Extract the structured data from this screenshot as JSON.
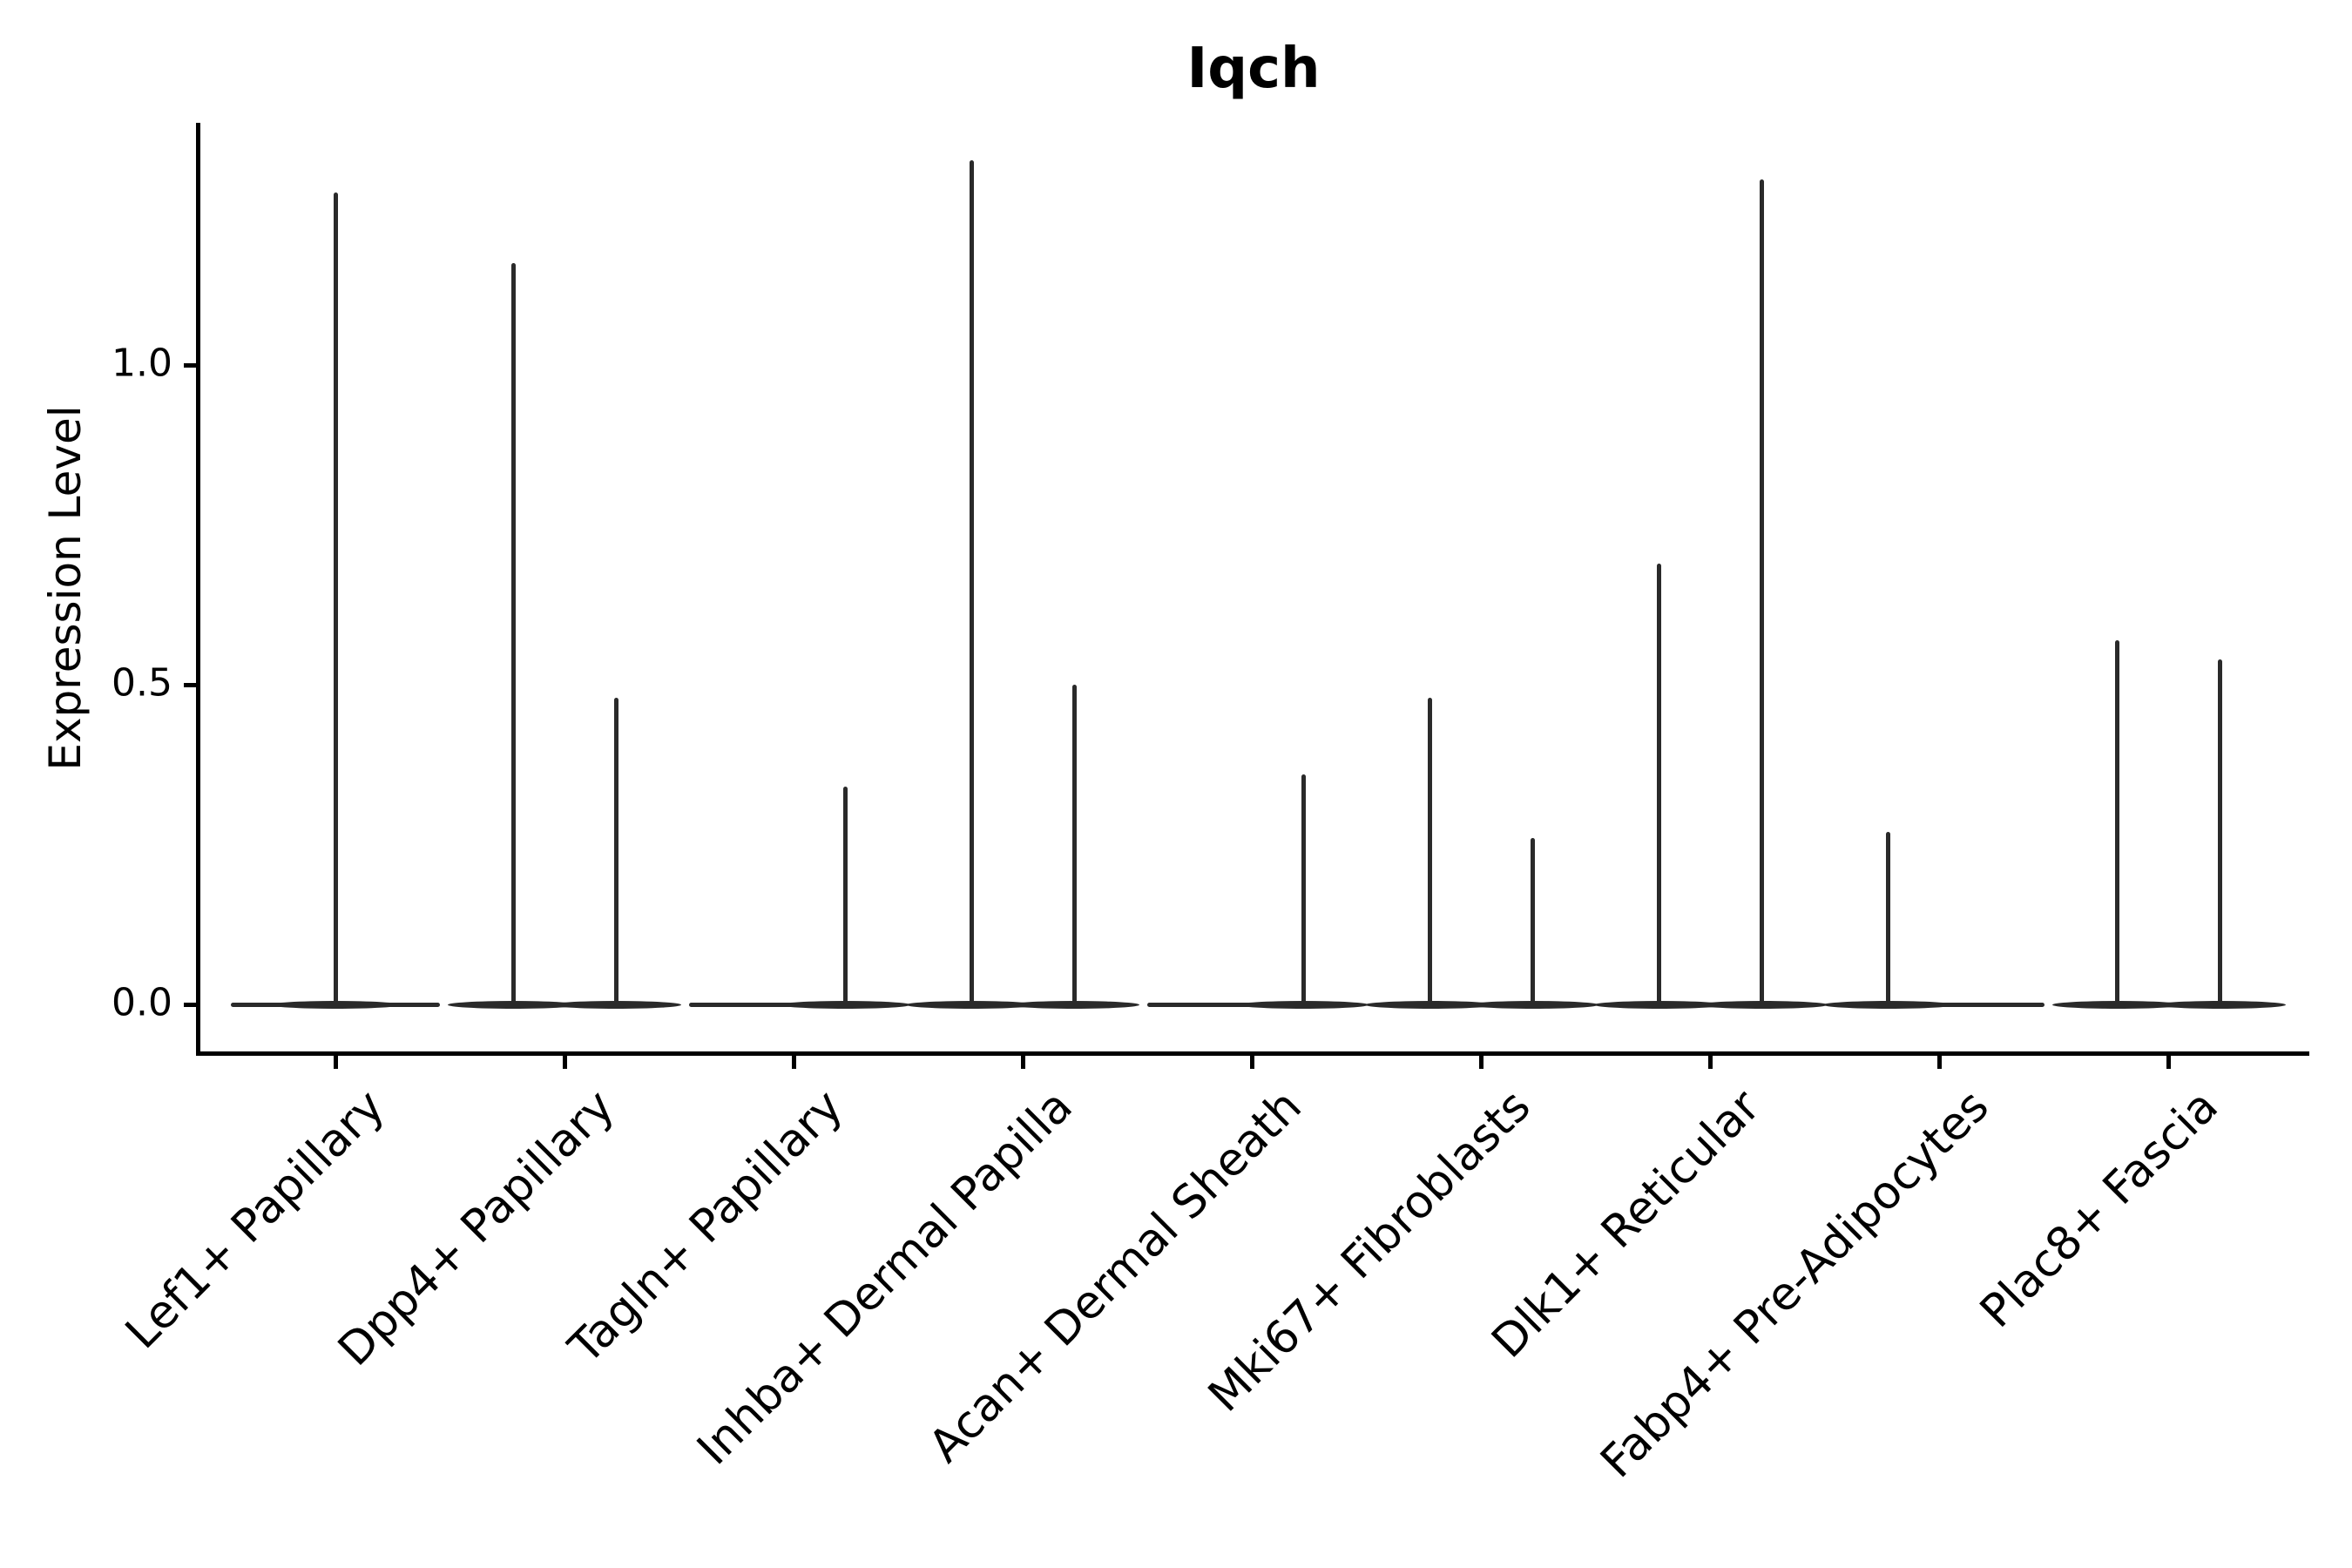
{
  "title": "Iqch",
  "y_axis": {
    "label": "Expression Level",
    "ticks": [
      {
        "label": "1.0",
        "value": 1.0
      },
      {
        "label": "0.5",
        "value": 0.5
      },
      {
        "label": "0.0",
        "value": 0.0
      }
    ]
  },
  "x_axis": {
    "categories": [
      "Lef1+ Papillary",
      "Dpp4+ Papillary",
      "Tagln+ Papillary",
      "Inhba+ Dermal Papilla",
      "Acan+ Dermal Sheath",
      "Mki67+ Fibroblasts",
      "Dlk1+ Reticular",
      "Fabp4+ Pre-Adipocytes",
      "Plac8+ Fascia"
    ]
  },
  "chart_data": {
    "type": "violin",
    "title": "Iqch",
    "xlabel": "",
    "ylabel": "Expression Level",
    "ylim": [
      -0.08,
      1.38
    ],
    "yticks": [
      0.0,
      0.5,
      1.0
    ],
    "grid": false,
    "legend": "none",
    "categories": [
      "Lef1+ Papillary",
      "Dpp4+ Papillary",
      "Tagln+ Papillary",
      "Inhba+ Dermal Papilla",
      "Acan+ Dermal Sheath",
      "Mki67+ Fibroblasts",
      "Dlk1+ Reticular",
      "Fabp4+ Pre-Adipocytes",
      "Plac8+ Fascia"
    ],
    "violins": [
      {
        "category": "Lef1+ Papillary",
        "spikes": [
          {
            "position": "center",
            "max_expression": 1.27
          }
        ]
      },
      {
        "category": "Dpp4+ Papillary",
        "spikes": [
          {
            "position": "left",
            "max_expression": 1.16
          },
          {
            "position": "right",
            "max_expression": 0.48
          }
        ]
      },
      {
        "category": "Tagln+ Papillary",
        "spikes": [
          {
            "position": "right",
            "max_expression": 0.34
          }
        ]
      },
      {
        "category": "Inhba+ Dermal Papilla",
        "spikes": [
          {
            "position": "left",
            "max_expression": 1.32
          },
          {
            "position": "right",
            "max_expression": 0.5
          }
        ]
      },
      {
        "category": "Acan+ Dermal Sheath",
        "spikes": [
          {
            "position": "right",
            "max_expression": 0.36
          }
        ]
      },
      {
        "category": "Mki67+ Fibroblasts",
        "spikes": [
          {
            "position": "left",
            "max_expression": 0.48
          },
          {
            "position": "right",
            "max_expression": 0.26
          }
        ]
      },
      {
        "category": "Dlk1+ Reticular",
        "spikes": [
          {
            "position": "left",
            "max_expression": 0.69
          },
          {
            "position": "right",
            "max_expression": 1.29
          }
        ]
      },
      {
        "category": "Fabp4+ Pre-Adipocytes",
        "spikes": [
          {
            "position": "left",
            "max_expression": 0.27
          }
        ]
      },
      {
        "category": "Plac8+ Fascia",
        "spikes": [
          {
            "position": "left",
            "max_expression": 0.57
          },
          {
            "position": "right",
            "max_expression": 0.54
          }
        ]
      }
    ],
    "baseline_value": 0.0,
    "description": "Expression of gene Iqch per fibroblast cluster; violins are flat at 0 with thin tails rising to each group's maximum expression."
  },
  "colors": {
    "violin_line": "#2a2a2a",
    "axis": "#000000",
    "text": "#000000",
    "background": "#ffffff"
  }
}
